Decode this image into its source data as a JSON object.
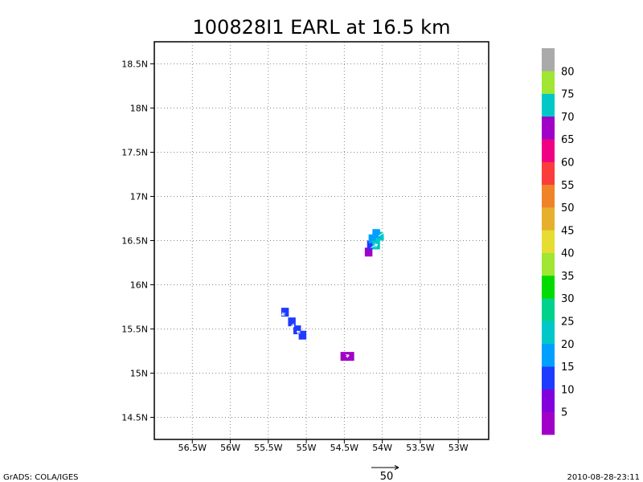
{
  "title": "100828I1 EARL at 16.5 km",
  "footer": {
    "left": "GrADS: COLA/IGES",
    "right": "2010-08-28-23:11",
    "vector_scale_label": "50"
  },
  "map": {
    "lon_range": [
      -57.0,
      -52.6
    ],
    "lat_range": [
      14.25,
      18.75
    ],
    "lon_ticks": [
      {
        "value": -56.5,
        "label": "56.5W"
      },
      {
        "value": -56.0,
        "label": "56W"
      },
      {
        "value": -55.5,
        "label": "55.5W"
      },
      {
        "value": -55.0,
        "label": "55W"
      },
      {
        "value": -54.5,
        "label": "54.5W"
      },
      {
        "value": -54.0,
        "label": "54W"
      },
      {
        "value": -53.5,
        "label": "53.5W"
      },
      {
        "value": -53.0,
        "label": "53W"
      }
    ],
    "lat_ticks": [
      {
        "value": 14.5,
        "label": "14.5N"
      },
      {
        "value": 15.0,
        "label": "15N"
      },
      {
        "value": 15.5,
        "label": "15.5N"
      },
      {
        "value": 16.0,
        "label": "16N"
      },
      {
        "value": 16.5,
        "label": "16.5N"
      },
      {
        "value": 17.0,
        "label": "17N"
      },
      {
        "value": 17.5,
        "label": "17.5N"
      },
      {
        "value": 18.0,
        "label": "18N"
      },
      {
        "value": 18.5,
        "label": "18.5N"
      }
    ],
    "grid": true
  },
  "colorbar": {
    "colors": [
      "#a000c8",
      "#8200dc",
      "#1e3cff",
      "#00a0ff",
      "#00c8c8",
      "#00d28c",
      "#00dc00",
      "#a0e632",
      "#e6dc32",
      "#e6af2d",
      "#f08228",
      "#fa3c3c",
      "#f00082",
      "#a000c8",
      "#00c8c8",
      "#a0e632",
      "#aaaaaa"
    ],
    "labels": [
      "5",
      "10",
      "15",
      "20",
      "25",
      "30",
      "35",
      "40",
      "45",
      "50",
      "55",
      "60",
      "65",
      "70",
      "75",
      "80"
    ]
  },
  "chart_data": {
    "type": "heatmap",
    "title": "100828I1 EARL at 16.5 km",
    "cells": [
      {
        "lon": -54.18,
        "lat": 16.37,
        "value": 7,
        "color": "#a000c8"
      },
      {
        "lon": -54.15,
        "lat": 16.45,
        "value": 12,
        "color": "#1e3cff"
      },
      {
        "lon": -54.13,
        "lat": 16.52,
        "value": 17,
        "color": "#00a0ff"
      },
      {
        "lon": -54.08,
        "lat": 16.45,
        "value": 22,
        "color": "#00c8c8"
      },
      {
        "lon": -54.03,
        "lat": 16.55,
        "value": 22,
        "color": "#00c8c8"
      },
      {
        "lon": -54.08,
        "lat": 16.58,
        "value": 17,
        "color": "#00a0ff"
      },
      {
        "lon": -55.28,
        "lat": 15.69,
        "value": 12,
        "color": "#1e3cff"
      },
      {
        "lon": -55.19,
        "lat": 15.58,
        "value": 12,
        "color": "#1e3cff"
      },
      {
        "lon": -55.12,
        "lat": 15.49,
        "value": 12,
        "color": "#1e3cff"
      },
      {
        "lon": -55.05,
        "lat": 15.43,
        "value": 12,
        "color": "#1e3cff"
      },
      {
        "lon": -54.5,
        "lat": 15.19,
        "value": 7,
        "color": "#a000c8"
      },
      {
        "lon": -54.42,
        "lat": 15.19,
        "value": 7,
        "color": "#a000c8"
      }
    ],
    "vectors": [
      {
        "lon": -54.15,
        "lat": 16.42,
        "u": 12,
        "v": 6
      },
      {
        "lon": -54.05,
        "lat": 16.55,
        "u": 12,
        "v": 8
      },
      {
        "lon": -55.28,
        "lat": 15.68,
        "u": -6,
        "v": -4
      },
      {
        "lon": -55.19,
        "lat": 15.55,
        "u": 4,
        "v": -4
      },
      {
        "lon": -55.08,
        "lat": 15.45,
        "u": -6,
        "v": 4
      },
      {
        "lon": -54.48,
        "lat": 15.19,
        "u": 6,
        "v": 2
      }
    ],
    "xlabel": "",
    "ylabel": "",
    "xlim": [
      -57.0,
      -52.6
    ],
    "ylim": [
      14.25,
      18.75
    ],
    "grid": true
  }
}
